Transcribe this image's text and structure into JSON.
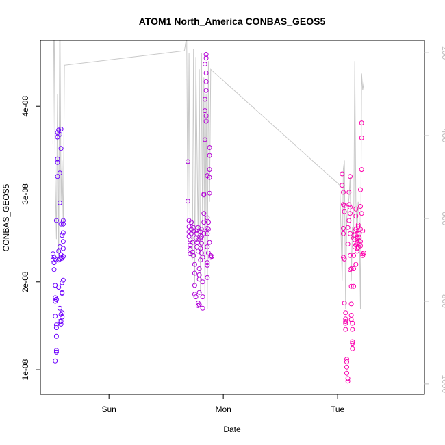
{
  "chart_data": {
    "type": "scatter",
    "title": "ATOM1 North_America CONBAS_GEOS5",
    "xlabel": "Date",
    "ylabel": "CONBAS_GEOS5",
    "x_unit": "days",
    "xlim": [
      -0.38,
      2.98
    ],
    "ylim": [
      7.2e-09,
      4.75e-08
    ],
    "x_ticks": [
      {
        "value": 0.22,
        "label": "Sun"
      },
      {
        "value": 1.22,
        "label": "Mon"
      },
      {
        "value": 2.22,
        "label": "Tue"
      }
    ],
    "y_ticks": [
      {
        "value": 1e-08,
        "label": "1e-08"
      },
      {
        "value": 2e-08,
        "label": "2e-08"
      },
      {
        "value": 3e-08,
        "label": "3e-08"
      },
      {
        "value": 4e-08,
        "label": "4e-08"
      }
    ],
    "y2_ticks": [
      {
        "value": 200,
        "label": "200"
      },
      {
        "value": 400,
        "label": "400"
      },
      {
        "value": 600,
        "label": "600"
      },
      {
        "value": 800,
        "label": "800"
      },
      {
        "value": 1000,
        "label": "1000"
      }
    ],
    "y2lim": [
      1025,
      170
    ],
    "y2_reversed": true,
    "grid": false,
    "series": [
      {
        "kind": "points",
        "color_start": "#6a00ff",
        "color_end": "#ff00aa",
        "points": [
          [
            -0.27,
            2.25e-08
          ],
          [
            -0.27,
            2.32e-08
          ],
          [
            -0.26,
            2.28e-08
          ],
          [
            -0.26,
            2.22e-08
          ],
          [
            -0.25,
            2.26e-08
          ],
          [
            -0.26,
            2.14e-08
          ],
          [
            -0.25,
            1.96e-08
          ],
          [
            -0.25,
            1.82e-08
          ],
          [
            -0.25,
            1.78e-08
          ],
          [
            -0.24,
            1.8e-08
          ],
          [
            -0.25,
            1.61e-08
          ],
          [
            -0.24,
            1.51e-08
          ],
          [
            -0.24,
            1.48e-08
          ],
          [
            -0.24,
            1.38e-08
          ],
          [
            -0.24,
            1.22e-08
          ],
          [
            -0.24,
            1.2e-08
          ],
          [
            -0.25,
            1.1e-08
          ],
          [
            -0.24,
            2.7e-08
          ],
          [
            -0.23,
            3.2e-08
          ],
          [
            -0.23,
            3.36e-08
          ],
          [
            -0.23,
            3.4e-08
          ],
          [
            -0.23,
            3.65e-08
          ],
          [
            -0.23,
            3.7e-08
          ],
          [
            -0.22,
            3.73e-08
          ],
          [
            -0.22,
            2.35e-08
          ],
          [
            -0.22,
            2.25e-08
          ],
          [
            -0.21,
            2.26e-08
          ],
          [
            -0.21,
            2.4e-08
          ],
          [
            -0.22,
            1.94e-08
          ],
          [
            -0.21,
            1.7e-08
          ],
          [
            -0.21,
            1.55e-08
          ],
          [
            -0.2,
            1.52e-08
          ],
          [
            -0.21,
            2.9e-08
          ],
          [
            -0.21,
            3.24e-08
          ],
          [
            -0.2,
            3.52e-08
          ],
          [
            -0.2,
            3.74e-08
          ],
          [
            -0.21,
            3.68e-08
          ],
          [
            -0.2,
            2.66e-08
          ],
          [
            -0.2,
            2.28e-08
          ],
          [
            -0.19,
            2.27e-08
          ],
          [
            -0.19,
            1.99e-08
          ],
          [
            -0.19,
            1.88e-08
          ],
          [
            -0.19,
            1.87e-08
          ],
          [
            -0.19,
            1.65e-08
          ],
          [
            -0.19,
            1.6e-08
          ],
          [
            -0.2,
            1.63e-08
          ],
          [
            -0.2,
            1.55e-08
          ],
          [
            -0.18,
            2.66e-08
          ],
          [
            -0.18,
            2.7e-08
          ],
          [
            -0.18,
            2.56e-08
          ],
          [
            -0.18,
            2.46e-08
          ],
          [
            -0.18,
            2.38e-08
          ],
          [
            -0.18,
            2.02e-08
          ],
          [
            -0.18,
            2.29e-08
          ],
          [
            -0.19,
            2.53e-08
          ],
          [
            -0.2,
            2.31e-08
          ],
          [
            0.91,
            3.37e-08
          ],
          [
            0.91,
            2.92e-08
          ],
          [
            0.92,
            2.7e-08
          ],
          [
            0.92,
            2.63e-08
          ],
          [
            0.92,
            2.57e-08
          ],
          [
            0.92,
            2.52e-08
          ],
          [
            0.93,
            2.48e-08
          ],
          [
            0.93,
            2.42e-08
          ],
          [
            0.93,
            2.37e-08
          ],
          [
            0.93,
            2.32e-08
          ],
          [
            0.94,
            2.68e-08
          ],
          [
            0.94,
            2.6e-08
          ],
          [
            0.94,
            2.55e-08
          ],
          [
            0.95,
            2.45e-08
          ],
          [
            0.95,
            2.34e-08
          ],
          [
            0.96,
            2.3e-08
          ],
          [
            0.96,
            2.62e-08
          ],
          [
            0.96,
            2.58e-08
          ],
          [
            0.97,
            2.2e-08
          ],
          [
            0.97,
            2.1e-08
          ],
          [
            0.97,
            1.96e-08
          ],
          [
            0.97,
            1.86e-08
          ],
          [
            0.98,
            1.83e-08
          ],
          [
            0.98,
            2.58e-08
          ],
          [
            0.98,
            2.5e-08
          ],
          [
            0.99,
            2.45e-08
          ],
          [
            0.99,
            2.4e-08
          ],
          [
            0.99,
            2.55e-08
          ],
          [
            1.0,
            2.62e-08
          ],
          [
            1.0,
            2.48e-08
          ],
          [
            1.0,
            2.35e-08
          ],
          [
            1.0,
            1.76e-08
          ],
          [
            1.0,
            1.73e-08
          ],
          [
            1.01,
            1.74e-08
          ],
          [
            1.01,
            1.88e-08
          ],
          [
            1.01,
            2.03e-08
          ],
          [
            1.01,
            2.08e-08
          ],
          [
            1.01,
            2.15e-08
          ],
          [
            1.02,
            2.25e-08
          ],
          [
            1.02,
            2.38e-08
          ],
          [
            1.02,
            2.5e-08
          ],
          [
            1.02,
            2.57e-08
          ],
          [
            1.03,
            2.6e-08
          ],
          [
            1.03,
            2.52e-08
          ],
          [
            1.03,
            2.44e-08
          ],
          [
            1.03,
            2.33e-08
          ],
          [
            1.04,
            2.28e-08
          ],
          [
            1.04,
            2e-08
          ],
          [
            1.04,
            1.83e-08
          ],
          [
            1.04,
            1.7e-08
          ],
          [
            1.05,
            2.55e-08
          ],
          [
            1.05,
            2.68e-08
          ],
          [
            1.05,
            2.78e-08
          ],
          [
            1.05,
            2.99e-08
          ],
          [
            1.05,
            3e-08
          ],
          [
            1.06,
            3.62e-08
          ],
          [
            1.06,
            3.95e-08
          ],
          [
            1.06,
            4.08e-08
          ],
          [
            1.07,
            4.18e-08
          ],
          [
            1.07,
            4.28e-08
          ],
          [
            1.07,
            4.38e-08
          ],
          [
            1.07,
            4.55e-08
          ],
          [
            1.07,
            4.59e-08
          ],
          [
            1.07,
            3.83e-08
          ],
          [
            1.07,
            3.89e-08
          ],
          [
            1.08,
            3.21e-08
          ],
          [
            1.08,
            2.73e-08
          ],
          [
            1.08,
            2.61e-08
          ],
          [
            1.08,
            2.4e-08
          ],
          [
            1.08,
            2.22e-08
          ],
          [
            1.08,
            2.05e-08
          ],
          [
            1.08,
            2.19e-08
          ],
          [
            1.09,
            2.33e-08
          ],
          [
            1.09,
            2.6e-08
          ],
          [
            1.09,
            2.68e-08
          ],
          [
            1.1,
            3.01e-08
          ],
          [
            1.1,
            3.19e-08
          ],
          [
            1.1,
            3.28e-08
          ],
          [
            1.1,
            3.44e-08
          ],
          [
            1.1,
            3.53e-08
          ],
          [
            1.1,
            2.45e-08
          ],
          [
            1.11,
            2.3e-08
          ],
          [
            1.12,
            2.29e-08
          ],
          [
            1.11,
            2.28e-08
          ],
          [
            1.06,
            4.48e-08
          ],
          [
            1.08,
            2.55e-08
          ],
          [
            2.26,
            3.23e-08
          ],
          [
            2.26,
            3.1e-08
          ],
          [
            2.27,
            3.02e-08
          ],
          [
            2.27,
            2.88e-08
          ],
          [
            2.28,
            2.87e-08
          ],
          [
            2.28,
            2.8e-08
          ],
          [
            2.27,
            2.61e-08
          ],
          [
            2.27,
            2.55e-08
          ],
          [
            2.27,
            2.28e-08
          ],
          [
            2.28,
            2.26e-08
          ],
          [
            2.28,
            1.76e-08
          ],
          [
            2.29,
            1.65e-08
          ],
          [
            2.29,
            1.58e-08
          ],
          [
            2.29,
            1.55e-08
          ],
          [
            2.29,
            1.53e-08
          ],
          [
            2.29,
            1.46e-08
          ],
          [
            2.3,
            1.12e-08
          ],
          [
            2.3,
            1.09e-08
          ],
          [
            2.3,
            1.03e-08
          ],
          [
            2.3,
            9.6e-09
          ],
          [
            2.31,
            9e-09
          ],
          [
            2.31,
            8.7e-09
          ],
          [
            2.31,
            2.43e-08
          ],
          [
            2.31,
            2.62e-08
          ],
          [
            2.32,
            2.7e-08
          ],
          [
            2.32,
            2.88e-08
          ],
          [
            2.32,
            3.02e-08
          ],
          [
            2.33,
            3.2e-08
          ],
          [
            2.33,
            2.85e-08
          ],
          [
            2.33,
            2.78e-08
          ],
          [
            2.33,
            2.55e-08
          ],
          [
            2.33,
            2.3e-08
          ],
          [
            2.33,
            2.14e-08
          ],
          [
            2.34,
            1.95e-08
          ],
          [
            2.34,
            1.75e-08
          ],
          [
            2.34,
            1.62e-08
          ],
          [
            2.34,
            1.57e-08
          ],
          [
            2.35,
            1.53e-08
          ],
          [
            2.35,
            1.46e-08
          ],
          [
            2.35,
            1.3e-08
          ],
          [
            2.35,
            1.32e-08
          ],
          [
            2.35,
            1.24e-08
          ],
          [
            2.36,
            2.15e-08
          ],
          [
            2.36,
            2.3e-08
          ],
          [
            2.36,
            2.5e-08
          ],
          [
            2.37,
            2.58e-08
          ],
          [
            2.37,
            2.53e-08
          ],
          [
            2.37,
            2.48e-08
          ],
          [
            2.37,
            2.4e-08
          ],
          [
            2.38,
            2.6e-08
          ],
          [
            2.38,
            2.75e-08
          ],
          [
            2.38,
            2.83e-08
          ],
          [
            2.38,
            2.42e-08
          ],
          [
            2.39,
            2.38e-08
          ],
          [
            2.39,
            2.45e-08
          ],
          [
            2.39,
            2.5e-08
          ],
          [
            2.39,
            2.55e-08
          ],
          [
            2.4,
            2.63e-08
          ],
          [
            2.4,
            2.4e-08
          ],
          [
            2.41,
            2.43e-08
          ],
          [
            2.41,
            2.47e-08
          ],
          [
            2.41,
            2.5e-08
          ],
          [
            2.42,
            2.41e-08
          ],
          [
            2.42,
            2.46e-08
          ],
          [
            2.42,
            2.6e-08
          ],
          [
            2.42,
            2.86e-08
          ],
          [
            2.42,
            3.05e-08
          ],
          [
            2.43,
            3.28e-08
          ],
          [
            2.43,
            3.64e-08
          ],
          [
            2.43,
            3.81e-08
          ],
          [
            2.43,
            2.78e-08
          ],
          [
            2.44,
            2.58e-08
          ],
          [
            2.44,
            2.32e-08
          ],
          [
            2.44,
            2.3e-08
          ],
          [
            2.45,
            2.33e-08
          ],
          [
            2.4,
            2.65e-08
          ],
          [
            2.41,
            2.55e-08
          ],
          [
            2.39,
            2.35e-08
          ],
          [
            2.38,
            2.2e-08
          ],
          [
            2.36,
            1.95e-08
          ],
          [
            2.34,
            2.15e-08
          ]
        ]
      },
      {
        "kind": "line",
        "color": "#c8c8c8",
        "axis": "right",
        "points": [
          [
            -0.27,
            420
          ],
          [
            -0.26,
            80
          ],
          [
            -0.25,
            500
          ],
          [
            -0.24,
            650
          ],
          [
            -0.23,
            300
          ],
          [
            -0.22,
            700
          ],
          [
            -0.21,
            50
          ],
          [
            -0.2,
            560
          ],
          [
            -0.19,
            460
          ],
          [
            -0.18,
            620
          ],
          [
            -0.17,
            230
          ],
          [
            0.88,
            195
          ],
          [
            0.9,
            160
          ],
          [
            0.91,
            620
          ],
          [
            0.92,
            200
          ],
          [
            0.93,
            680
          ],
          [
            0.95,
            700
          ],
          [
            0.96,
            190
          ],
          [
            0.97,
            760
          ],
          [
            0.98,
            210
          ],
          [
            1.0,
            650
          ],
          [
            1.01,
            240
          ],
          [
            1.02,
            780
          ],
          [
            1.03,
            200
          ],
          [
            1.04,
            700
          ],
          [
            1.05,
            260
          ],
          [
            1.06,
            800
          ],
          [
            1.07,
            300
          ],
          [
            1.08,
            820
          ],
          [
            1.09,
            220
          ],
          [
            1.1,
            560
          ],
          [
            1.11,
            240
          ],
          [
            2.24,
            520
          ],
          [
            2.26,
            750
          ],
          [
            2.27,
            480
          ],
          [
            2.28,
            460
          ],
          [
            2.29,
            820
          ],
          [
            2.3,
            600
          ],
          [
            2.32,
            550
          ],
          [
            2.33,
            500
          ],
          [
            2.34,
            750
          ],
          [
            2.35,
            620
          ],
          [
            2.36,
            650
          ],
          [
            2.37,
            220
          ],
          [
            2.38,
            560
          ],
          [
            2.39,
            640
          ],
          [
            2.4,
            560
          ],
          [
            2.41,
            600
          ],
          [
            2.42,
            820
          ],
          [
            2.43,
            250
          ],
          [
            2.44,
            290
          ],
          [
            2.45,
            270
          ]
        ]
      }
    ]
  }
}
